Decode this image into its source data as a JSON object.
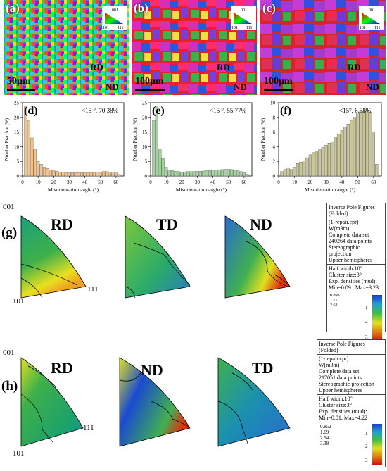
{
  "micro": [
    {
      "label": "(a)",
      "scale": "50μm",
      "rd": "RD",
      "nd": "ND"
    },
    {
      "label": "(b)",
      "scale": "100μm",
      "rd": "RD",
      "nd": "ND"
    },
    {
      "label": "(c)",
      "scale": "100μm",
      "rd": "RD",
      "nd": "ND"
    }
  ],
  "key": {
    "t001": "001",
    "t101": "101",
    "t111": "111"
  },
  "chart_data": [
    {
      "type": "bar",
      "label": "(d)",
      "annotation": "<15 °, 70.38%",
      "xlabel": "Misorientation angle (°)",
      "ylabel": "Number Fraction (%)",
      "ylim": [
        0,
        25
      ],
      "xlim": [
        0,
        65
      ],
      "x": [
        2,
        4,
        6,
        8,
        10,
        12,
        14,
        16,
        18,
        20,
        22,
        24,
        26,
        28,
        30,
        32,
        34,
        36,
        38,
        40,
        42,
        44,
        46,
        48,
        50,
        52,
        54,
        56,
        58,
        60,
        62
      ],
      "values": [
        24,
        19,
        13,
        9,
        5,
        4,
        3,
        2.6,
        2.1,
        1.8,
        1.6,
        1.4,
        1.3,
        1.2,
        1.2,
        1.1,
        1.1,
        1.1,
        1.1,
        1.2,
        1.2,
        1.2,
        1.3,
        1.3,
        1.4,
        1.5,
        1.5,
        1.4,
        1.3,
        1.0,
        0.5
      ],
      "color": "#f3c58d",
      "xticks": [
        0,
        10,
        20,
        30,
        40,
        50,
        60
      ],
      "yticks": [
        0,
        5,
        10,
        15,
        20,
        25
      ]
    },
    {
      "type": "bar",
      "label": "(e)",
      "annotation": "<15 °, 55.77%",
      "xlabel": "Misorientation angle (°)",
      "ylabel": "Number Fraction (%)",
      "ylim": [
        0,
        25
      ],
      "xlim": [
        0,
        65
      ],
      "x": [
        2,
        4,
        6,
        8,
        10,
        12,
        14,
        16,
        18,
        20,
        22,
        24,
        26,
        28,
        30,
        32,
        34,
        36,
        38,
        40,
        42,
        44,
        46,
        48,
        50,
        52,
        54,
        56,
        58,
        60,
        62
      ],
      "values": [
        19,
        24,
        9,
        6,
        3,
        2,
        1.8,
        1.6,
        1.5,
        1.4,
        1.4,
        1.5,
        1.5,
        1.5,
        1.6,
        1.6,
        1.7,
        1.8,
        1.9,
        2.0,
        2.1,
        2.1,
        2.2,
        2.3,
        2.3,
        2.2,
        2.1,
        1.8,
        1.5,
        1.2,
        0.6
      ],
      "color": "#a6d4a0",
      "xticks": [
        0,
        10,
        20,
        30,
        40,
        50,
        60
      ],
      "yticks": [
        0,
        5,
        10,
        15,
        20,
        25
      ]
    },
    {
      "type": "bar",
      "label": "(f)",
      "annotation": "<15°, 6.58%",
      "xlabel": "Misorientation angle (°)",
      "ylabel": "Number Fraction (%)",
      "ylim": [
        0,
        10
      ],
      "xlim": [
        0,
        65
      ],
      "x": [
        2,
        4,
        6,
        8,
        10,
        12,
        14,
        16,
        18,
        20,
        22,
        24,
        26,
        28,
        30,
        32,
        34,
        36,
        38,
        40,
        42,
        44,
        46,
        48,
        50,
        52,
        54,
        56,
        58,
        60,
        62
      ],
      "values": [
        0.6,
        0.9,
        1.1,
        0.9,
        1.2,
        1.7,
        1.9,
        2.1,
        2.5,
        2.9,
        3.2,
        3.3,
        3.6,
        3.9,
        4.2,
        4.5,
        4.7,
        5.3,
        5.7,
        6.2,
        6.7,
        7.1,
        7.6,
        8.0,
        8.6,
        8.9,
        8.8,
        9.0,
        8.7,
        6.0,
        1.6
      ],
      "color": "#c9c69a",
      "xticks": [
        0,
        10,
        20,
        30,
        40,
        50,
        60
      ],
      "yticks": [
        0,
        2,
        4,
        6,
        8,
        10
      ]
    }
  ],
  "ipf_g": {
    "label": "(g)",
    "c001": "001",
    "c101": "101",
    "c111": "111",
    "titles": [
      "RD",
      "TD",
      "ND"
    ],
    "info": {
      "s1": [
        "Inverse Pole Figures",
        "(Folded)"
      ],
      "s2": [
        "(1-repair.cpr)",
        "W(m3m)",
        "Complete data set",
        "240264 data points",
        "Stereographic projection",
        "Upper hemispheres"
      ],
      "s3": [
        "Half width:10°",
        "Cluster size:3°",
        "Exp. densities (mud):",
        "Min=0.09 , Max=3.23"
      ],
      "levels": [
        "0.898",
        "1.77",
        "2.63"
      ],
      "scale": [
        "1",
        "2",
        "3"
      ]
    }
  },
  "ipf_h": {
    "label": "(h)",
    "c001": "001",
    "c101": "101",
    "c111": "111",
    "titles": [
      "RD",
      "ND",
      "TD"
    ],
    "info": {
      "s1": [
        "Inverse Pole Figures",
        "(Folded)"
      ],
      "s2": [
        "(1-repair.cpr)",
        "W(m3m)",
        "Complete data set",
        "217051 data points",
        "Stereographic projection",
        "Upper hemispheres"
      ],
      "s3": [
        "Half width:10°",
        "Cluster size:3°",
        "Exp. densities (mud):",
        "Min=0.01, Max=4.22"
      ],
      "levels": [
        "0.852",
        "1.69",
        "2.54",
        "3.38"
      ],
      "scale": [
        "1",
        "2",
        "3"
      ]
    }
  }
}
